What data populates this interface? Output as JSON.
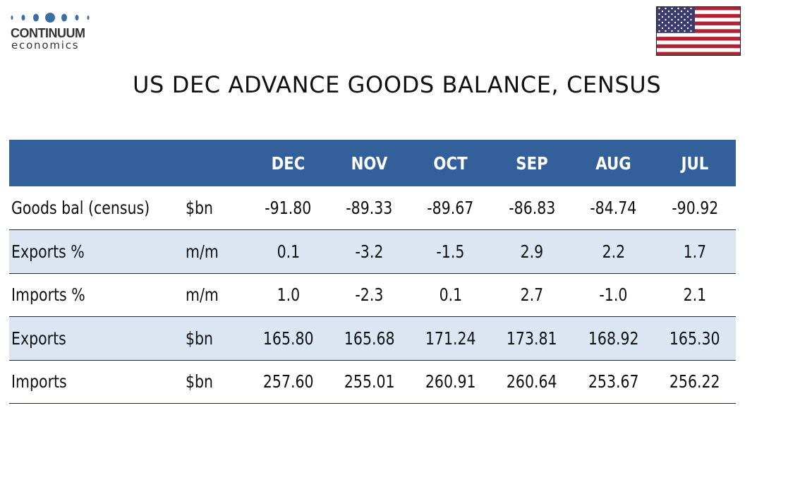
{
  "logo": {
    "name": "CONTINUUM",
    "sub": "economics"
  },
  "flag": {
    "icon": "us-flag-icon"
  },
  "title": "US DEC ADVANCE GOODS BALANCE, CENSUS",
  "colors": {
    "header_bg": "#33609a",
    "row_shade": "#dce6f2",
    "logo_dots": "#3a6ea5"
  },
  "table": {
    "columns": [
      "",
      "",
      "DEC",
      "NOV",
      "OCT",
      "SEP",
      "AUG",
      "JUL"
    ],
    "rows": [
      {
        "label": "Goods bal (census)",
        "unit": "$bn",
        "values": [
          "-91.80",
          "-89.33",
          "-89.67",
          "-86.83",
          "-84.74",
          "-90.92"
        ]
      },
      {
        "label": "Exports %",
        "unit": "m/m",
        "values": [
          "0.1",
          "-3.2",
          "-1.5",
          "2.9",
          "2.2",
          "1.7"
        ]
      },
      {
        "label": "Imports %",
        "unit": "m/m",
        "values": [
          "1.0",
          "-2.3",
          "0.1",
          "2.7",
          "-1.0",
          "2.1"
        ]
      },
      {
        "label": "Exports",
        "unit": "$bn",
        "values": [
          "165.80",
          "165.68",
          "171.24",
          "173.81",
          "168.92",
          "165.30"
        ]
      },
      {
        "label": "Imports",
        "unit": "$bn",
        "values": [
          "257.60",
          "255.01",
          "260.91",
          "260.64",
          "253.67",
          "256.22"
        ]
      }
    ]
  }
}
